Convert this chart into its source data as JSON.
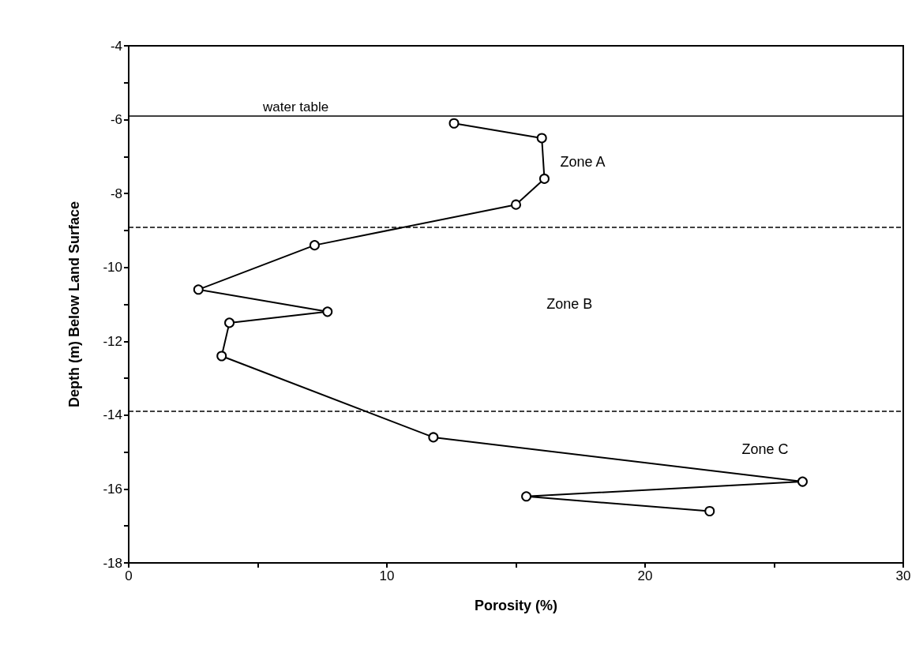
{
  "chart_data": {
    "type": "line",
    "xlabel": "Porosity (%)",
    "ylabel": "Depth (m) Below Land Surface",
    "x": [
      12.6,
      16.0,
      16.1,
      15.0,
      7.2,
      2.7,
      7.7,
      3.9,
      3.6,
      11.8,
      26.1,
      15.4,
      22.5
    ],
    "series": [
      {
        "color": "#000000",
        "values": [
          -6.1,
          -6.5,
          -7.6,
          -8.3,
          -9.4,
          -10.6,
          -11.2,
          -11.5,
          -12.4,
          -14.6,
          -15.8,
          -16.2,
          -16.6
        ]
      }
    ],
    "xlim": [
      0,
      30
    ],
    "xticks": [
      0,
      {
        "value": 5,
        "label": null
      },
      10,
      {
        "value": 15,
        "label": null
      },
      20,
      {
        "value": 25,
        "label": null
      },
      30
    ],
    "ylim": [
      -18,
      -4
    ],
    "yticks": [
      -18,
      {
        "value": -17,
        "label": null
      },
      -16,
      {
        "value": -15,
        "label": null
      },
      -14,
      {
        "value": -13,
        "label": null
      },
      -12,
      {
        "value": -11,
        "label": null
      },
      -10,
      {
        "value": -9,
        "label": null
      },
      -8,
      {
        "value": -7,
        "label": null
      },
      -6,
      {
        "value": -5,
        "label": null
      },
      -4
    ],
    "ref_lines": [
      {
        "axis": "y",
        "value": -5.9,
        "label": "water table",
        "line_style": "solid",
        "color": "#000000"
      },
      {
        "axis": "y",
        "value": -8.9,
        "line_style": "dashed",
        "color": "#000000"
      },
      {
        "axis": "y",
        "value": -13.9,
        "line_style": "dashed",
        "color": "#000000"
      }
    ],
    "annotations": [
      "Zone A",
      "Zone B",
      "Zone C"
    ],
    "grid": false,
    "marker": "circle",
    "line_style": "solid"
  }
}
